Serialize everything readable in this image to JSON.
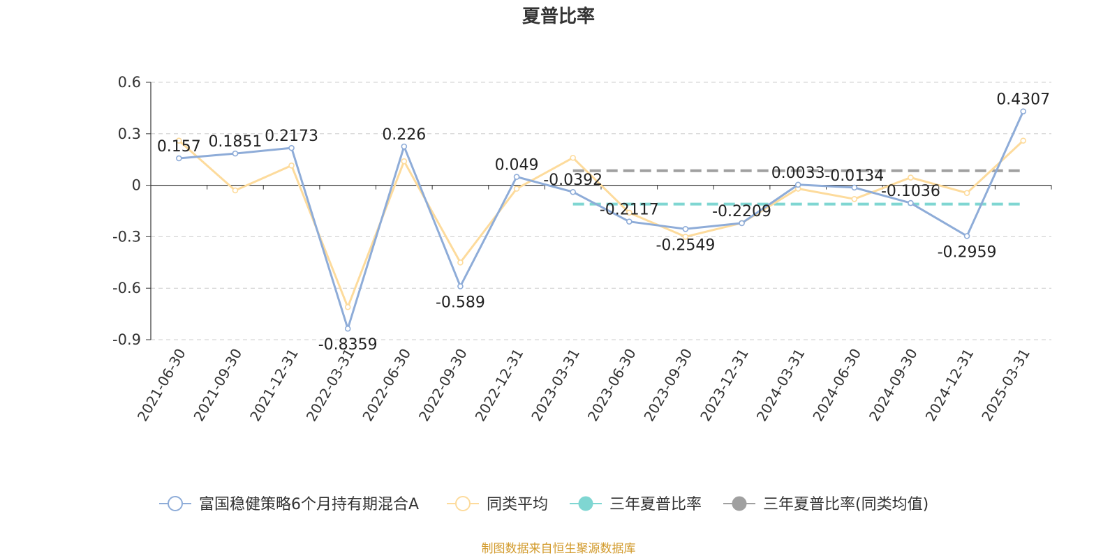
{
  "chart_data": {
    "type": "line",
    "title": "夏普比率",
    "categories": [
      "2021-06-30",
      "2021-09-30",
      "2021-12-31",
      "2022-03-31",
      "2022-06-30",
      "2022-09-30",
      "2022-12-31",
      "2023-03-31",
      "2023-06-30",
      "2023-09-30",
      "2023-12-31",
      "2024-03-31",
      "2024-06-30",
      "2024-09-30",
      "2024-12-31",
      "2025-03-31"
    ],
    "ylim": [
      -0.9,
      0.6
    ],
    "yticks": [
      "0.6",
      "0.3",
      "0",
      "-0.3",
      "-0.6",
      "-0.9"
    ],
    "grid": true,
    "legend_position": "bottom",
    "series": [
      {
        "name": "富国稳健策略6个月持有期混合A",
        "color": "#8eacd8",
        "values": [
          0.157,
          0.1851,
          0.2173,
          -0.8359,
          0.226,
          -0.589,
          0.049,
          -0.0392,
          -0.2117,
          -0.2549,
          -0.2209,
          0.0033,
          -0.0134,
          -0.1036,
          -0.2959,
          0.4307
        ],
        "labels": [
          "0.157",
          "0.1851",
          "0.2173",
          "-0.8359",
          "0.226",
          "-0.589",
          "0.049",
          "-0.0392",
          "-0.2117",
          "-0.2549",
          "-0.2209",
          "0.0033",
          "-0.0134",
          "-0.1036",
          "-0.2959",
          "0.4307"
        ]
      },
      {
        "name": "同类平均",
        "color": "#fddb9c",
        "values": [
          0.26,
          -0.03,
          0.115,
          -0.71,
          0.14,
          -0.45,
          -0.02,
          0.16,
          -0.16,
          -0.3,
          -0.22,
          -0.02,
          -0.08,
          0.045,
          -0.045,
          0.26
        ]
      },
      {
        "name": "三年夏普比率",
        "color": "#7fd6d2",
        "type": "reference",
        "from": "2023-03-31",
        "to": "2025-03-31",
        "value": -0.11
      },
      {
        "name": "三年夏普比率(同类均值)",
        "color": "#a0a0a0",
        "type": "reference",
        "from": "2023-03-31",
        "to": "2025-03-31",
        "value": 0.085
      }
    ],
    "source": "制图数据来自恒生聚源数据库"
  }
}
